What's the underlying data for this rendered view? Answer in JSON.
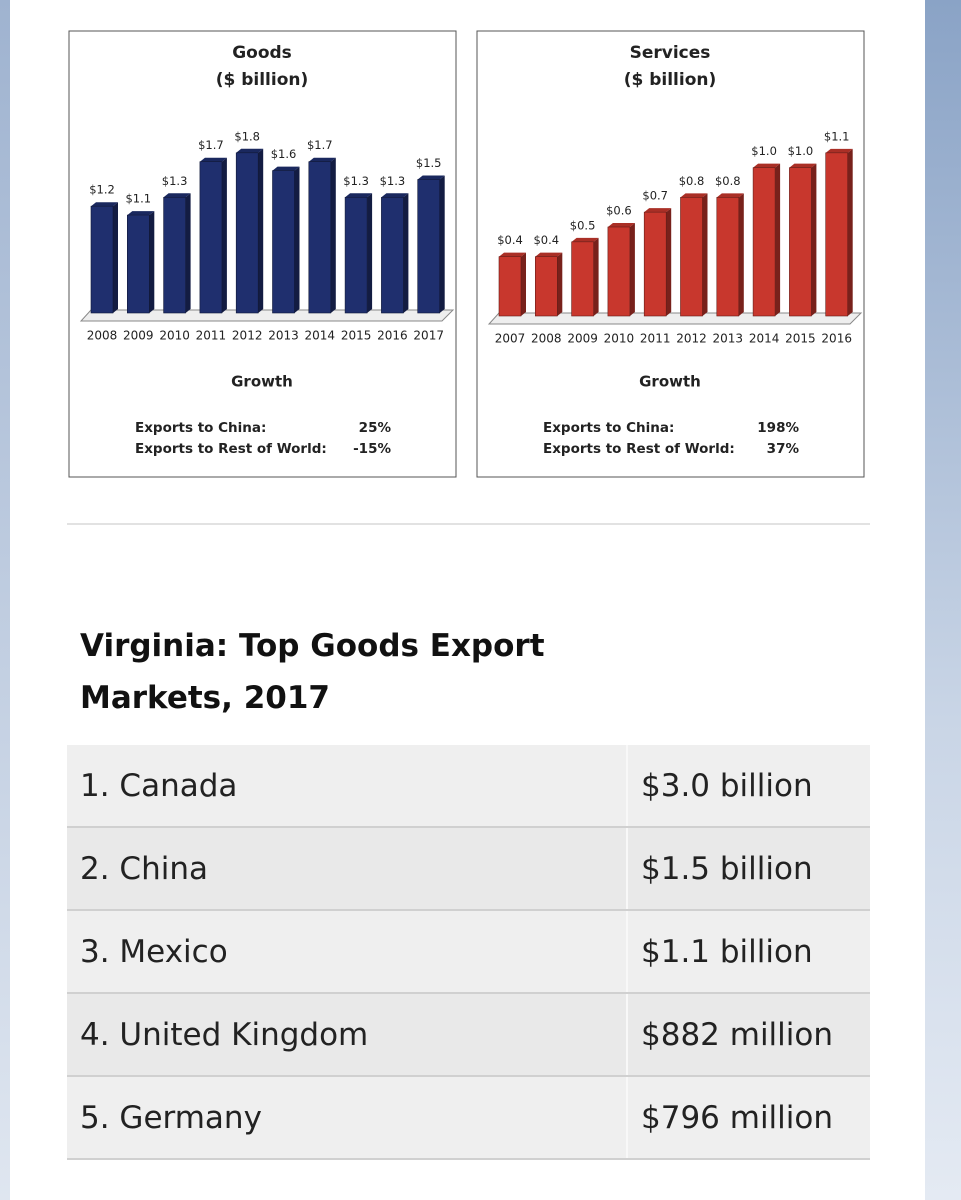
{
  "chart_data": [
    {
      "type": "bar",
      "title": "Goods",
      "subtitle": "($ billion)",
      "categories": [
        "2008",
        "2009",
        "2010",
        "2011",
        "2012",
        "2013",
        "2014",
        "2015",
        "2016",
        "2017"
      ],
      "values": [
        1.2,
        1.1,
        1.3,
        1.7,
        1.8,
        1.6,
        1.7,
        1.3,
        1.3,
        1.5
      ],
      "value_labels": [
        "$1.2",
        "$1.1",
        "$1.3",
        "$1.7",
        "$1.8",
        "$1.6",
        "$1.7",
        "$1.3",
        "$1.3",
        "$1.5"
      ],
      "color": "#1f2f6e",
      "ylim": [
        0,
        2
      ],
      "growth": {
        "title": "Growth",
        "rows": [
          [
            "Exports to China:",
            "25%"
          ],
          [
            "Exports to Rest of World:",
            "-15%"
          ]
        ]
      }
    },
    {
      "type": "bar",
      "title": "Services",
      "subtitle": "($ billion)",
      "categories": [
        "2007",
        "2008",
        "2009",
        "2010",
        "2011",
        "2012",
        "2013",
        "2014",
        "2015",
        "2016"
      ],
      "values": [
        0.4,
        0.4,
        0.5,
        0.6,
        0.7,
        0.8,
        0.8,
        1.0,
        1.0,
        1.1
      ],
      "value_labels": [
        "$0.4",
        "$0.4",
        "$0.5",
        "$0.6",
        "$0.7",
        "$0.8",
        "$0.8",
        "$1.0",
        "$1.0",
        "$1.1"
      ],
      "color": "#c8372d",
      "ylim": [
        0,
        1.2
      ],
      "growth": {
        "title": "Growth",
        "rows": [
          [
            "Exports to China:",
            "198%"
          ],
          [
            "Exports to Rest of World:",
            "37%"
          ]
        ]
      }
    }
  ],
  "table": {
    "title": "Virginia: Top Goods Export Markets, 2017",
    "rows": [
      [
        "1. Canada",
        "$3.0 billion"
      ],
      [
        "2. China",
        "$1.5 billion"
      ],
      [
        "3. Mexico",
        "$1.1 billion"
      ],
      [
        "4. United Kingdom",
        "$882 million"
      ],
      [
        "5. Germany",
        "$796 million"
      ]
    ]
  }
}
